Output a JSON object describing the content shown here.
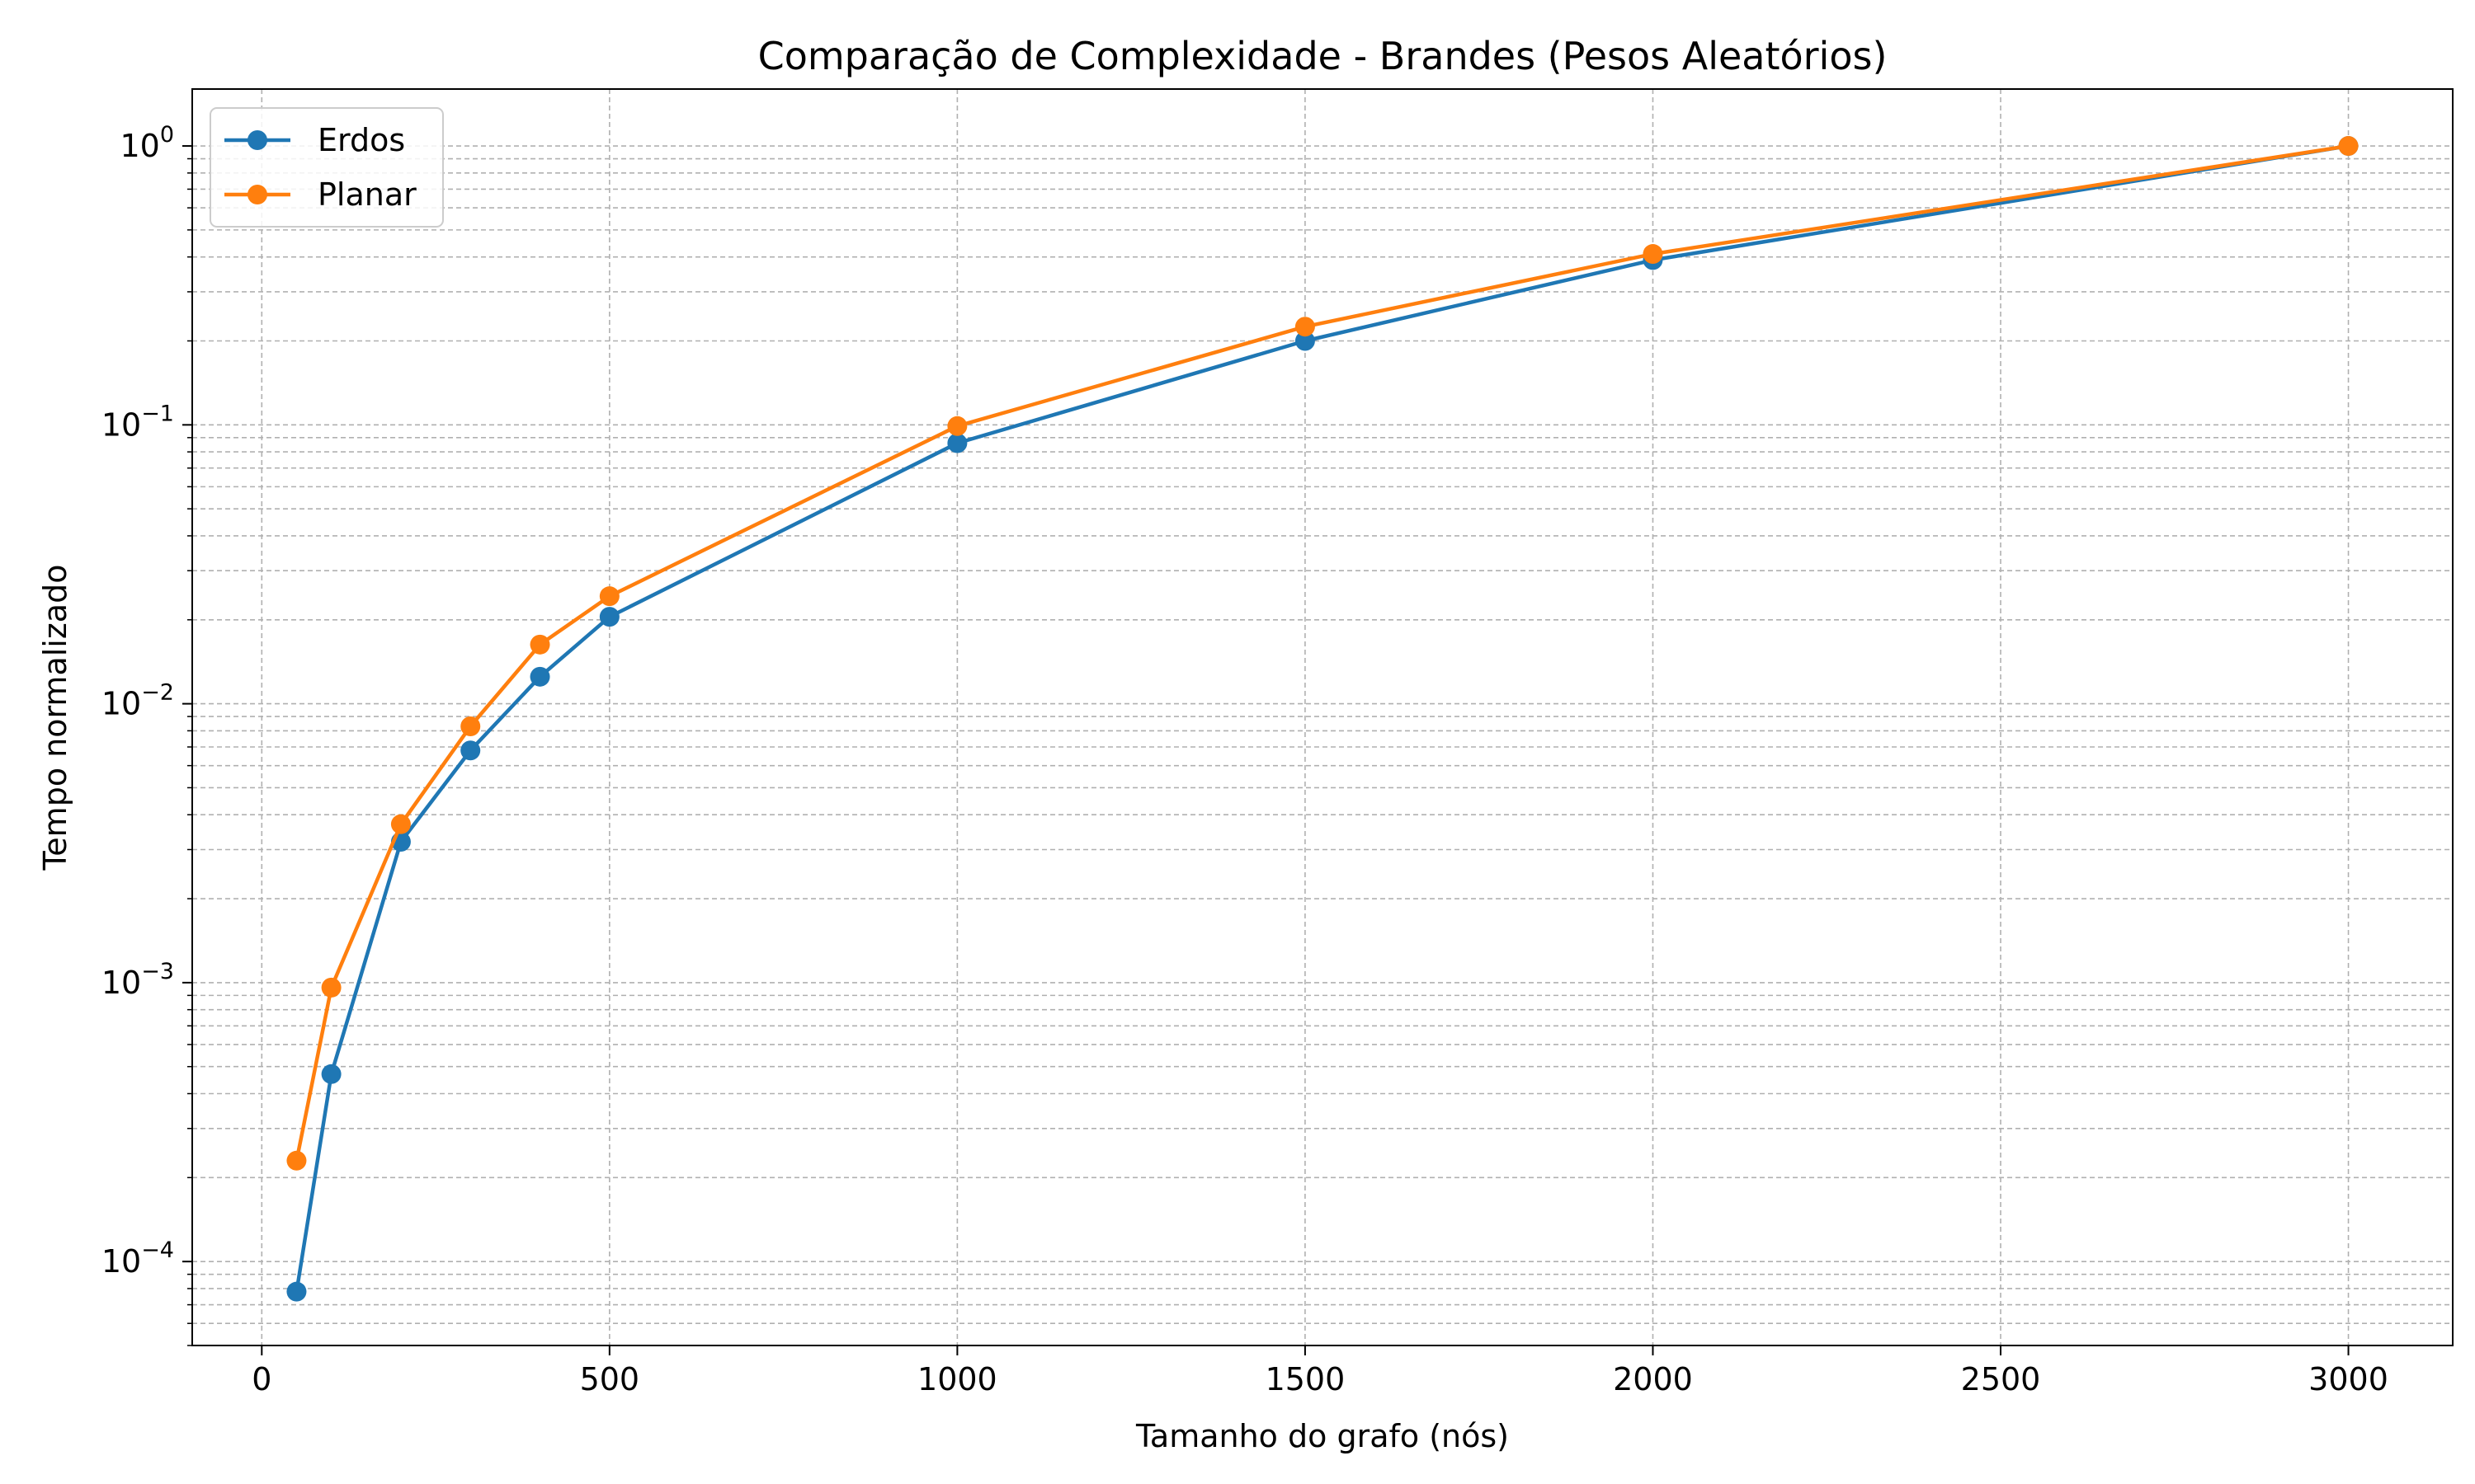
{
  "chart_data": {
    "type": "line",
    "title": "Comparação de Complexidade - Brandes (Pesos Aleatórios)",
    "xlabel": "Tamanho do grafo (nós)",
    "ylabel": "Tempo normalizado",
    "xlim": [
      -100,
      3150
    ],
    "ylim": [
      5e-05,
      1.6
    ],
    "yscale": "log",
    "grid": true,
    "legend_position": "top-left",
    "xticks": [
      0,
      500,
      1000,
      1500,
      2000,
      2500,
      3000
    ],
    "xtick_labels": [
      "0",
      "500",
      "1000",
      "1500",
      "2000",
      "2500",
      "3000"
    ],
    "yticks": [
      {
        "value": 0.0001,
        "base": "10",
        "exp": "−4"
      },
      {
        "value": 0.001,
        "base": "10",
        "exp": "−3"
      },
      {
        "value": 0.01,
        "base": "10",
        "exp": "−2"
      },
      {
        "value": 0.1,
        "base": "10",
        "exp": "−1"
      },
      {
        "value": 1,
        "base": "10",
        "exp": "0"
      }
    ],
    "series": [
      {
        "name": "Erdos",
        "color": "#1f77b4",
        "x": [
          50,
          100,
          200,
          300,
          400,
          500,
          1000,
          1500,
          2000,
          3000
        ],
        "y": [
          7.8e-05,
          0.00047,
          0.0032,
          0.0068,
          0.0125,
          0.0205,
          0.086,
          0.2,
          0.39,
          1.0
        ]
      },
      {
        "name": "Planar",
        "color": "#ff7f0e",
        "x": [
          50,
          100,
          200,
          300,
          400,
          500,
          1000,
          1500,
          2000,
          3000
        ],
        "y": [
          0.00023,
          0.00096,
          0.0037,
          0.0083,
          0.0163,
          0.0243,
          0.099,
          0.225,
          0.41,
          1.0
        ]
      }
    ]
  }
}
